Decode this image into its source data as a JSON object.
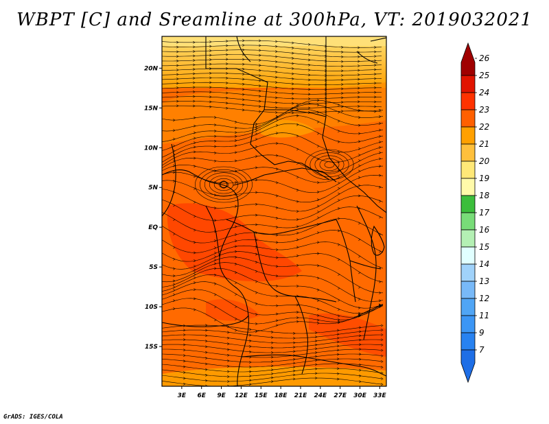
{
  "title": "WBPT [C] and Sreamline at 300hPa, VT: 2019032021",
  "footer": "GrADS: IGES/COLA",
  "map": {
    "lon_range": [
      0,
      34
    ],
    "lat_range": [
      -20,
      24
    ],
    "lon_ticks": [
      "3E",
      "6E",
      "9E",
      "12E",
      "15E",
      "18E",
      "21E",
      "24E",
      "27E",
      "30E",
      "33E"
    ],
    "lat_ticks": [
      "20N",
      "15N",
      "10N",
      "5N",
      "EQ",
      "5S",
      "10S",
      "15S"
    ]
  },
  "colorbar": {
    "labels": [
      "7",
      "9",
      "11",
      "12",
      "13",
      "14",
      "15",
      "16",
      "17",
      "18",
      "19",
      "20",
      "21",
      "22",
      "23",
      "24",
      "25",
      "26"
    ],
    "colors": [
      "#1e6ee6",
      "#2882f0",
      "#3c96f5",
      "#50a5f5",
      "#78b9f8",
      "#a0d2fa",
      "#e1ffff",
      "#b4f0b4",
      "#78dc78",
      "#3cbe3c",
      "#fffaaa",
      "#ffe878",
      "#ffc03c",
      "#ffa000",
      "#ff6000",
      "#ff3200",
      "#e11400",
      "#a00000"
    ]
  }
}
